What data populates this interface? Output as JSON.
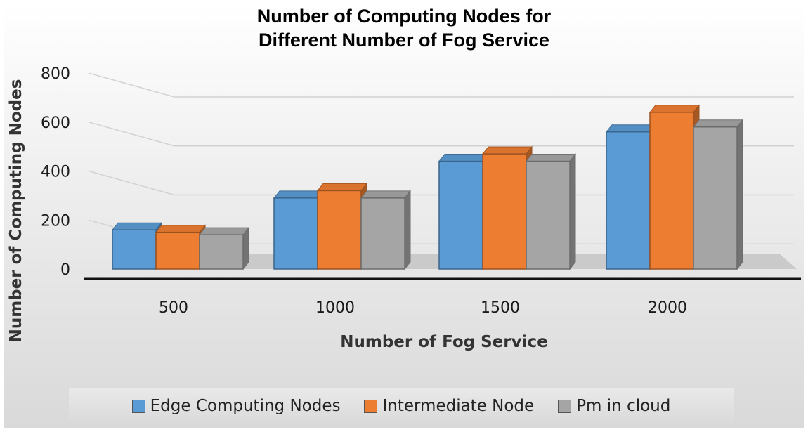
{
  "chart_data": {
    "type": "bar",
    "title": [
      "Number of Computing Nodes for",
      "Different Number of Fog Service"
    ],
    "xlabel": "Number of Fog Service",
    "ylabel": "Number of Computing Nodes",
    "categories": [
      "500",
      "1000",
      "1500",
      "2000"
    ],
    "ylim": [
      0,
      800
    ],
    "yticks": [
      "0",
      "200",
      "400",
      "600",
      "800"
    ],
    "grid": true,
    "legend_position": "bottom",
    "series": [
      {
        "name": "Edge Computing Nodes",
        "values": [
          160,
          290,
          440,
          560
        ],
        "color": "#5b9bd5"
      },
      {
        "name": "Intermediate Node",
        "values": [
          150,
          320,
          470,
          640
        ],
        "color": "#ed7d31"
      },
      {
        "name": "Pm in cloud",
        "values": [
          140,
          290,
          440,
          580
        ],
        "color": "#a5a5a5"
      }
    ]
  }
}
